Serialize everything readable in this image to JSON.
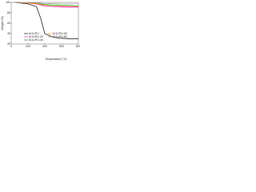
{
  "chart_data": {
    "type": "line",
    "x_label": "Temperature (°C)",
    "y_label": "Weight (%)",
    "x": [
      30,
      100,
      200,
      300,
      350,
      400,
      500,
      600,
      700,
      800
    ],
    "series": [
      {
        "name": "M-IL/PU",
        "color": "#000000",
        "values": [
          100,
          99,
          97,
          92,
          70,
          40,
          33,
          31,
          30,
          30
        ]
      },
      {
        "name": "M-IL/PU-20",
        "color": "#ff00ff",
        "values": [
          100,
          99.5,
          98.5,
          97,
          95,
          93,
          92,
          91,
          91,
          91
        ]
      },
      {
        "name": "M-IL/PU-40",
        "color": "#00a000",
        "values": [
          100,
          99.5,
          99,
          98,
          97,
          96,
          95,
          94,
          94,
          93
        ]
      },
      {
        "name": "M-IL/PU-60",
        "color": "#ff8c00",
        "values": [
          100,
          99.5,
          98.5,
          97.5,
          96,
          94,
          93,
          92.5,
          92,
          92
        ]
      },
      {
        "name": "M-IL/PU-80",
        "color": "#909090",
        "values": [
          100,
          99.8,
          99.5,
          99,
          98.5,
          98,
          97.5,
          97,
          97,
          97
        ]
      }
    ],
    "xlim": [
      0,
      800
    ],
    "xticks": [
      0,
      200,
      400,
      600,
      800
    ],
    "ylim": [
      20,
      100
    ],
    "yticks": [
      20,
      40,
      60,
      80,
      100
    ]
  }
}
